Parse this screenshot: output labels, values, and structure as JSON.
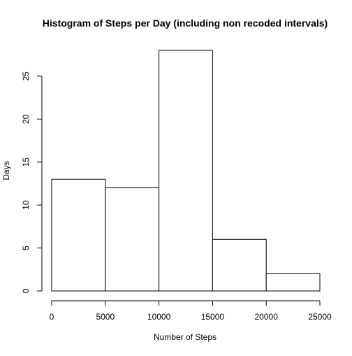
{
  "chart_data": {
    "type": "bar",
    "title": "Histogram of Steps per Day (including non recoded intervals)",
    "xlabel": "Number of Steps",
    "ylabel": "Days",
    "bins": [
      {
        "x0": 0,
        "x1": 5000,
        "value": 13
      },
      {
        "x0": 5000,
        "x1": 10000,
        "value": 12
      },
      {
        "x0": 10000,
        "x1": 15000,
        "value": 28
      },
      {
        "x0": 15000,
        "x1": 20000,
        "value": 6
      },
      {
        "x0": 20000,
        "x1": 25000,
        "value": 2
      }
    ],
    "xlim": [
      0,
      25000
    ],
    "ylim": [
      0,
      28
    ],
    "x_ticks": [
      0,
      5000,
      10000,
      15000,
      20000,
      25000
    ],
    "y_ticks": [
      0,
      5,
      10,
      15,
      20,
      25
    ],
    "grid": false,
    "legend": "none",
    "bar_fill": "#ffffff",
    "bar_stroke": "#000000"
  }
}
